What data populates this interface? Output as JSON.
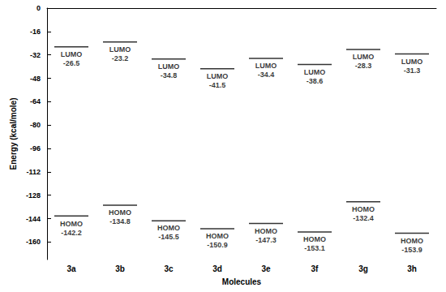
{
  "chart_data": {
    "type": "scatter",
    "x_label": "Molecules",
    "y_label": "Energy (kcal/mole)",
    "categories": [
      "3a",
      "3b",
      "3c",
      "3d",
      "3e",
      "3f",
      "3g",
      "3h"
    ],
    "series": [
      {
        "name": "LUMO",
        "color": "#000000",
        "marker": "level",
        "values": [
          -26.5,
          -23.2,
          -34.8,
          -41.5,
          -34.4,
          -38.6,
          -28.3,
          -31.3
        ]
      },
      {
        "name": "HOMO",
        "color": "#000000",
        "marker": "level",
        "values": [
          -142.2,
          -134.8,
          -145.5,
          -150.9,
          -147.3,
          -153.1,
          -132.4,
          -153.9
        ]
      }
    ],
    "ylim": [
      -172,
      0
    ],
    "yticks": [
      0,
      -16,
      -32,
      -48,
      -64,
      -80,
      -96,
      -112,
      -128,
      -144,
      -160
    ],
    "grid": false,
    "data_labels": true
  }
}
